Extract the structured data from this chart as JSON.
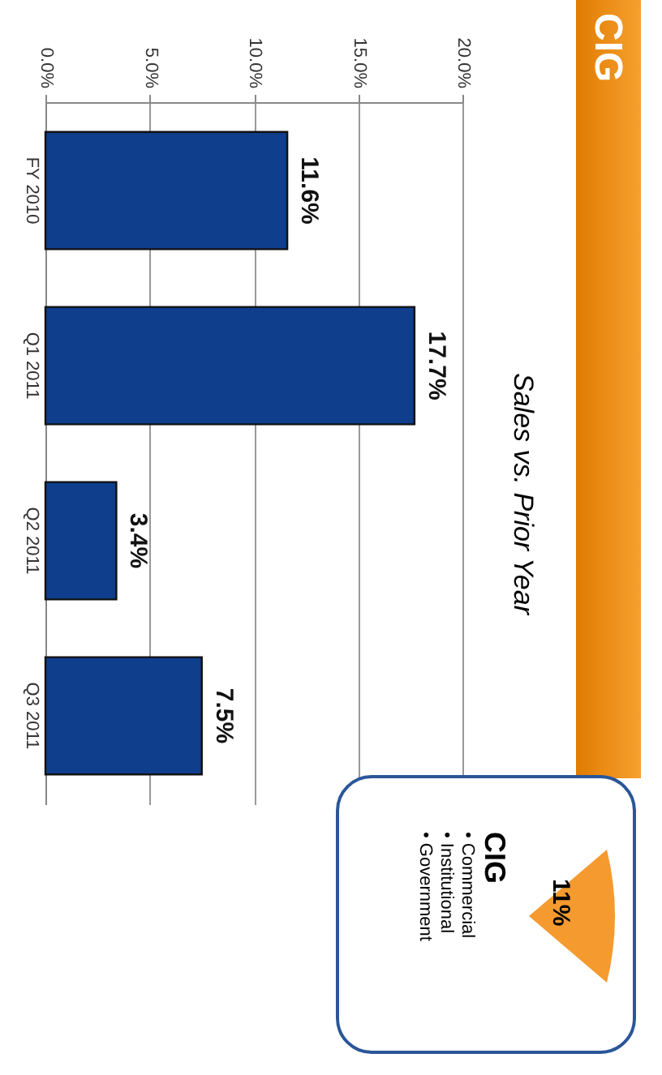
{
  "chart_data": {
    "type": "bar",
    "orientation": "horizontal",
    "title": "CIG",
    "subtitle": "Sales vs. Prior Year",
    "categories": [
      "FY 2010",
      "Q1 2011",
      "Q2 2011",
      "Q3 2011"
    ],
    "values": [
      11.6,
      17.7,
      3.4,
      7.5
    ],
    "color": "#0e3e8c",
    "value_labels": [
      "11.6%",
      "17.7%",
      "3.4%",
      "7.5%"
    ],
    "xlim": [
      0,
      20
    ],
    "xticks": [
      {
        "value": 0,
        "label": "0.0%"
      },
      {
        "value": 5,
        "label": "5.0%"
      },
      {
        "value": 10,
        "label": "10.0%"
      },
      {
        "value": 15,
        "label": "15.0%"
      },
      {
        "value": 20,
        "label": "20.0%"
      }
    ],
    "grid": "x",
    "annotations": [
      "11%",
      "CIG",
      "• Commercial",
      "• Institutional",
      "• Government"
    ]
  }
}
